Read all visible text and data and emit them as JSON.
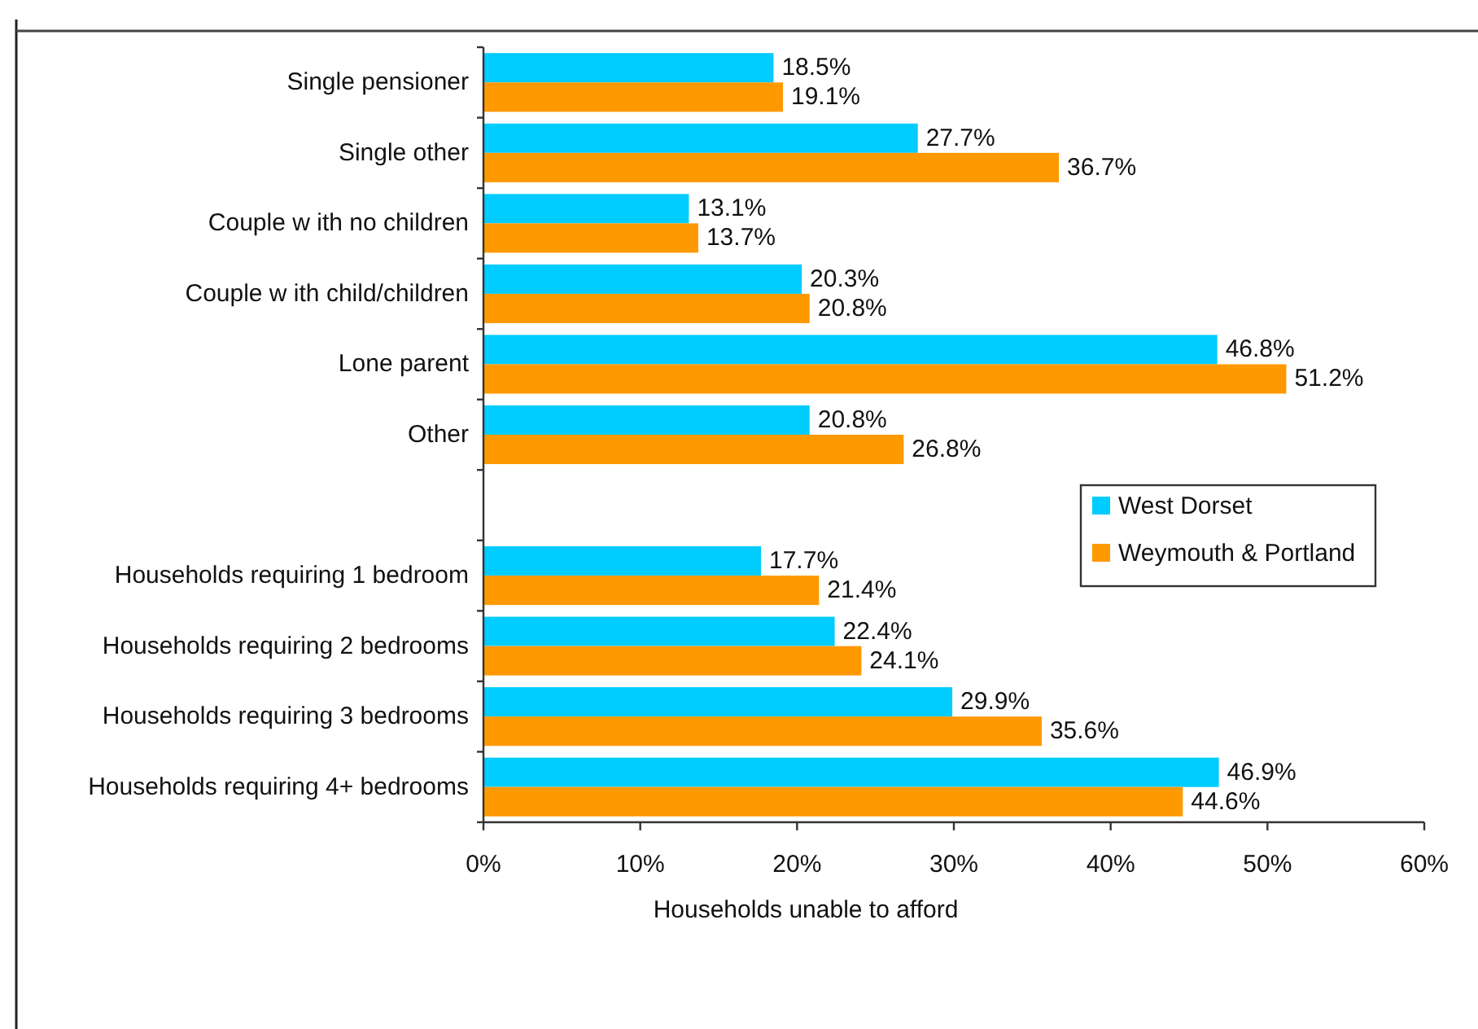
{
  "chart_data": {
    "type": "bar",
    "orientation": "horizontal",
    "categories": [
      "Single pensioner",
      "Single other",
      "Couple w ith no children",
      "Couple w ith child/children",
      "Lone parent",
      "Other",
      null,
      "Households requiring 1 bedroom",
      "Households requiring 2 bedrooms",
      "Households requiring 3 bedrooms",
      "Households requiring 4+ bedrooms"
    ],
    "series": [
      {
        "name": "West Dorset",
        "color": "#00ccff",
        "values": [
          18.5,
          27.7,
          13.1,
          20.3,
          46.8,
          20.8,
          null,
          17.7,
          22.4,
          29.9,
          46.9
        ],
        "value_labels": [
          "18.5%",
          "27.7%",
          "13.1%",
          "20.3%",
          "46.8%",
          "20.8%",
          null,
          "17.7%",
          "22.4%",
          "29.9%",
          "46.9%"
        ]
      },
      {
        "name": "Weymouth & Portland",
        "color": "#ff9900",
        "values": [
          19.1,
          36.7,
          13.7,
          20.8,
          51.2,
          26.8,
          null,
          21.4,
          24.1,
          35.6,
          44.6
        ],
        "value_labels": [
          "19.1%",
          "36.7%",
          "13.7%",
          "20.8%",
          "51.2%",
          "26.8%",
          null,
          "21.4%",
          "24.1%",
          "35.6%",
          "44.6%"
        ]
      }
    ],
    "xlabel": "Households unable to afford",
    "xlim": [
      0,
      60
    ],
    "xticks": [
      {
        "value": 0,
        "label": "0%"
      },
      {
        "value": 10,
        "label": "10%"
      },
      {
        "value": 20,
        "label": "20%"
      },
      {
        "value": 30,
        "label": "30%"
      },
      {
        "value": 40,
        "label": "40%"
      },
      {
        "value": 50,
        "label": "50%"
      },
      {
        "value": 60,
        "label": "60%"
      }
    ],
    "legend": "right"
  }
}
